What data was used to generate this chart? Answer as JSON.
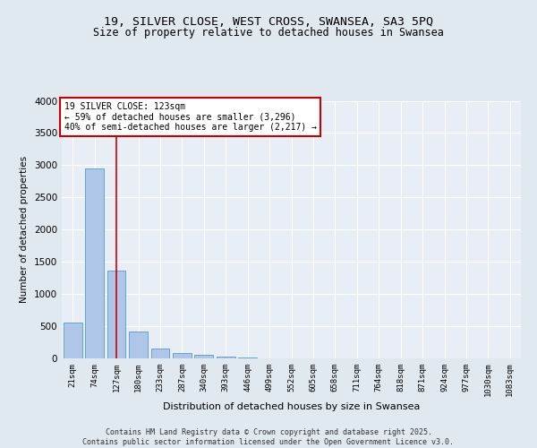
{
  "title1": "19, SILVER CLOSE, WEST CROSS, SWANSEA, SA3 5PQ",
  "title2": "Size of property relative to detached houses in Swansea",
  "xlabel": "Distribution of detached houses by size in Swansea",
  "ylabel": "Number of detached properties",
  "categories": [
    "21sqm",
    "74sqm",
    "127sqm",
    "180sqm",
    "233sqm",
    "287sqm",
    "340sqm",
    "393sqm",
    "446sqm",
    "499sqm",
    "552sqm",
    "605sqm",
    "658sqm",
    "711sqm",
    "764sqm",
    "818sqm",
    "871sqm",
    "924sqm",
    "977sqm",
    "1030sqm",
    "1083sqm"
  ],
  "values": [
    560,
    2950,
    1370,
    420,
    160,
    90,
    55,
    30,
    10,
    0,
    0,
    0,
    0,
    0,
    0,
    0,
    0,
    0,
    0,
    0,
    0
  ],
  "bar_color": "#aec6e8",
  "bar_edge_color": "#5599cc",
  "vline_x": 2,
  "vline_color": "#cc0000",
  "annotation_text": "19 SILVER CLOSE: 123sqm\n← 59% of detached houses are smaller (3,296)\n40% of semi-detached houses are larger (2,217) →",
  "annotation_box_color": "#cc0000",
  "ylim": [
    0,
    4000
  ],
  "yticks": [
    0,
    500,
    1000,
    1500,
    2000,
    2500,
    3000,
    3500,
    4000
  ],
  "bg_color": "#e0e8f0",
  "plot_bg_color": "#e8eef5",
  "footer": "Contains HM Land Registry data © Crown copyright and database right 2025.\nContains public sector information licensed under the Open Government Licence v3.0.",
  "title_fontsize": 9.5,
  "subtitle_fontsize": 8.5,
  "annotation_fontsize": 7,
  "xlabel_fontsize": 8,
  "ylabel_fontsize": 7.5,
  "tick_fontsize": 6.5,
  "ytick_fontsize": 7.5,
  "footer_fontsize": 6
}
